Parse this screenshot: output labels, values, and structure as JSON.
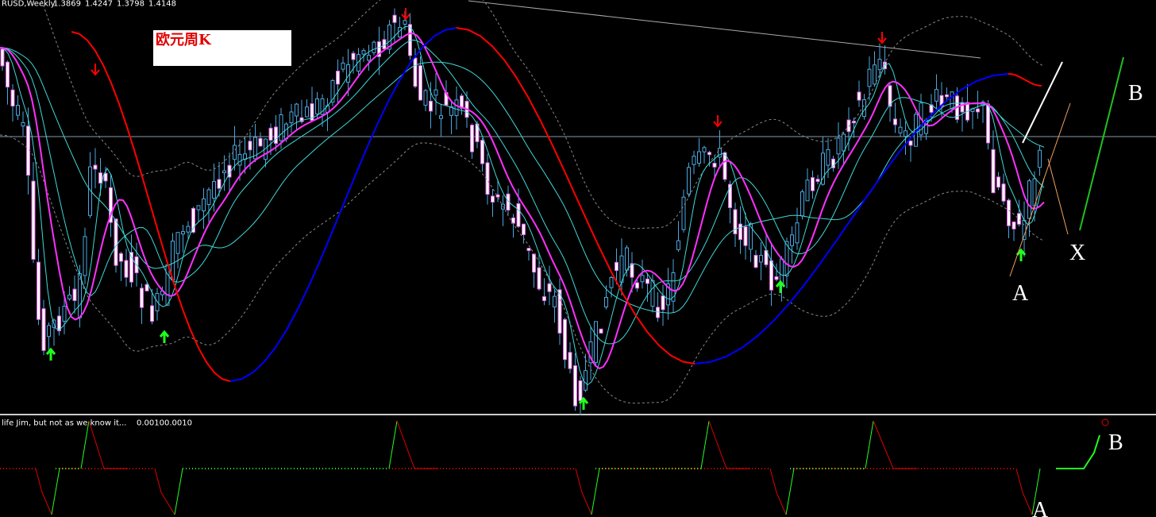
{
  "header": {
    "symbol": "RUSD,Weekly",
    "ohlc": [
      "1.3869",
      "1.4247",
      "1.3798",
      "1.4148"
    ]
  },
  "annotation": {
    "title": "欧元周K"
  },
  "main_labels": {
    "a": "A",
    "x": "X",
    "b": "B"
  },
  "indicator": {
    "name": "life Jim, but not as we know it...",
    "values": [
      "0.0010",
      "0.0010"
    ]
  },
  "indicator_labels": {
    "b": "B",
    "a": "A"
  }
}
